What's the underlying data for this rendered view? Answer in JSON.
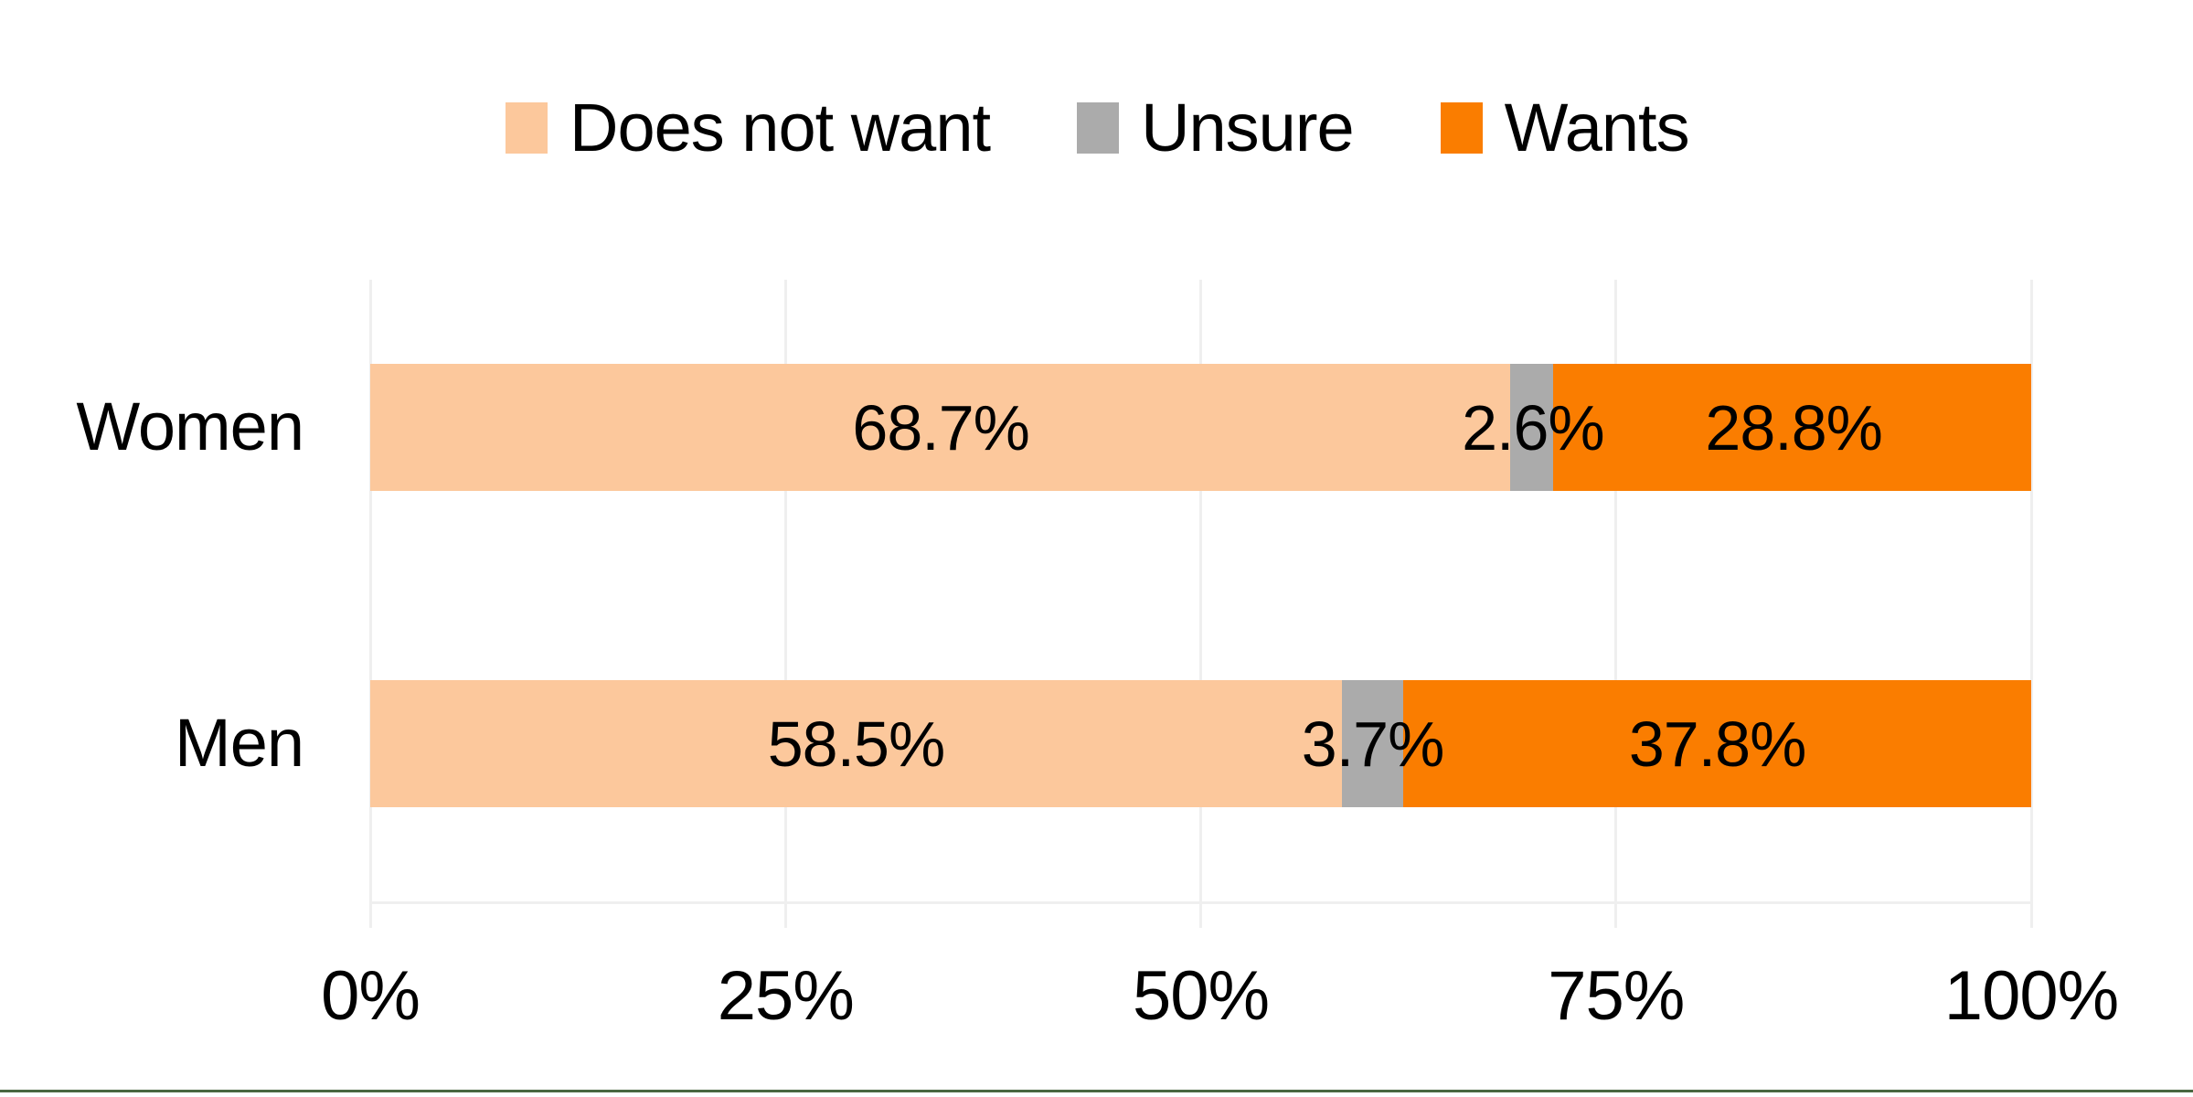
{
  "chart": {
    "background_color": "#FFFFFF",
    "grid_color": "#EFEFEF",
    "axis_line_color": "#EFEFEF",
    "text_color": "#000000",
    "bottom_border_color": "#4A6741"
  },
  "chart_data": {
    "type": "bar",
    "orientation": "horizontal",
    "stacked": true,
    "title": "",
    "xlabel": "",
    "ylabel": "",
    "categories": [
      "Women",
      "Men"
    ],
    "series": [
      {
        "name": "Does not want",
        "color": "#FCC89C",
        "values": [
          68.7,
          58.5
        ]
      },
      {
        "name": "Unsure",
        "color": "#ABABAB",
        "values": [
          2.6,
          3.7
        ]
      },
      {
        "name": "Wants",
        "color": "#FA7D00",
        "values": [
          28.8,
          37.8
        ]
      }
    ],
    "data_labels": [
      [
        "68.7%",
        "2.6%",
        "28.8%"
      ],
      [
        "58.5%",
        "3.7%",
        "37.8%"
      ]
    ],
    "x_ticks": [
      {
        "value": 0,
        "label": "0%"
      },
      {
        "value": 25,
        "label": "25%"
      },
      {
        "value": 50,
        "label": "50%"
      },
      {
        "value": 75,
        "label": "75%"
      },
      {
        "value": 100,
        "label": "100%"
      }
    ],
    "xlim": [
      0,
      100
    ],
    "legend_position": "top",
    "grid": "vertical major gridlines only"
  }
}
